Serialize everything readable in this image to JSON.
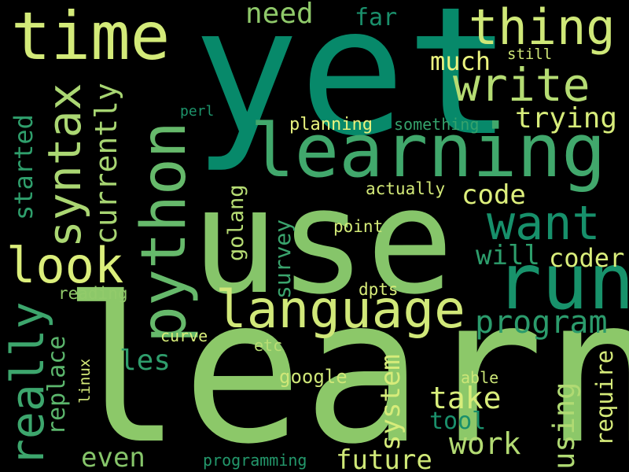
{
  "words": [
    {
      "text": "yet",
      "color": "#07896a"
    },
    {
      "text": "learn",
      "color": "#8cc869"
    },
    {
      "text": "use",
      "color": "#86c56a"
    },
    {
      "text": "time",
      "color": "#d3ea79"
    },
    {
      "text": "learning",
      "color": "#41a86c"
    },
    {
      "text": "python",
      "color": "#66b96b"
    },
    {
      "text": "language",
      "color": "#d1e879"
    },
    {
      "text": "run",
      "color": "#18926b"
    },
    {
      "text": "thing",
      "color": "#cfe878"
    },
    {
      "text": "write",
      "color": "#b5dc73"
    },
    {
      "text": "syntax",
      "color": "#abd773"
    },
    {
      "text": "want",
      "color": "#17906b"
    },
    {
      "text": "look",
      "color": "#dbee7b"
    },
    {
      "text": "really",
      "color": "#3da66d"
    },
    {
      "text": "program",
      "color": "#2b9b6c"
    },
    {
      "text": "currently",
      "color": "#a7d572"
    },
    {
      "text": "need",
      "color": "#8fc96a"
    },
    {
      "text": "far",
      "color": "#1a8f6b"
    },
    {
      "text": "much",
      "color": "#ecf47f"
    },
    {
      "text": "still",
      "color": "#cfe778"
    },
    {
      "text": "trying",
      "color": "#d7ec7a"
    },
    {
      "text": "started",
      "color": "#2f9f6c"
    },
    {
      "text": "perl",
      "color": "#1d946b"
    },
    {
      "text": "planning",
      "color": "#e8f27e"
    },
    {
      "text": "something",
      "color": "#35a26c"
    },
    {
      "text": "code",
      "color": "#ddef7c"
    },
    {
      "text": "actually",
      "color": "#d4ea79"
    },
    {
      "text": "golang",
      "color": "#b7dd74"
    },
    {
      "text": "survey",
      "color": "#3aa46d"
    },
    {
      "text": "point",
      "color": "#d4eb79"
    },
    {
      "text": "will",
      "color": "#2d9e6c"
    },
    {
      "text": "coder",
      "color": "#d9ed7b"
    },
    {
      "text": "reading",
      "color": "#92cb6b"
    },
    {
      "text": "dpts",
      "color": "#d8ed7a"
    },
    {
      "text": "replace",
      "color": "#5bb56c"
    },
    {
      "text": "les",
      "color": "#2f9e6c"
    },
    {
      "text": "system",
      "color": "#d6ec7a"
    },
    {
      "text": "curve",
      "color": "#d8ed7a"
    },
    {
      "text": "etc",
      "color": "#b9de74"
    },
    {
      "text": "require",
      "color": "#d6eb7a"
    },
    {
      "text": "linux",
      "color": "#d4ea79"
    },
    {
      "text": "google",
      "color": "#cfe778"
    },
    {
      "text": "able",
      "color": "#cce678"
    },
    {
      "text": "take",
      "color": "#d8ed7b"
    },
    {
      "text": "using",
      "color": "#b0da73"
    },
    {
      "text": "tool",
      "color": "#1a8f6b"
    },
    {
      "text": "work",
      "color": "#b3db73"
    },
    {
      "text": "even",
      "color": "#86c56a"
    },
    {
      "text": "future",
      "color": "#d0e978"
    },
    {
      "text": "programming",
      "color": "#23976b"
    }
  ]
}
